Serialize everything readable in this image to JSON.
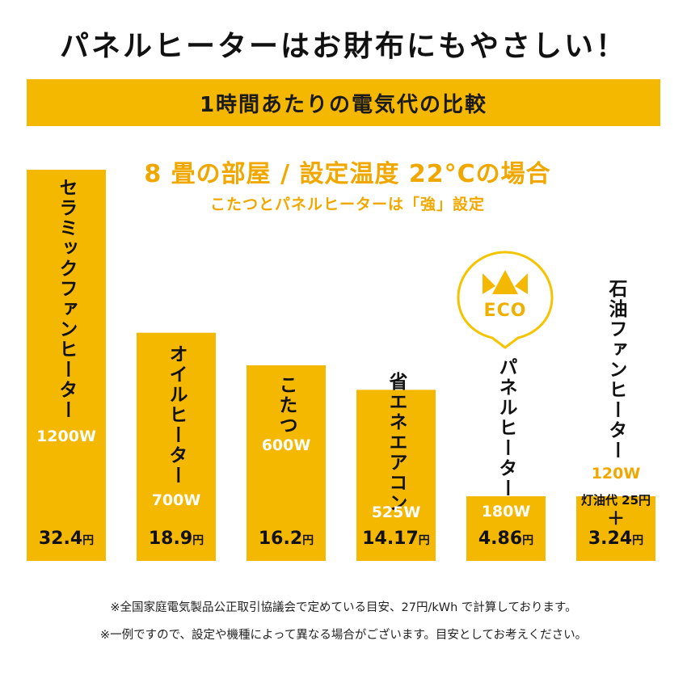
{
  "headline": "パネルヒーターはお財布にもやさしい！",
  "banner": "1時間あたりの電気代の比較",
  "condition": "8 畳の部屋 / 設定温度 22°Cの場合",
  "subcondition": "こたつとパネルヒーターは「強」設定",
  "eco_badge": "ECO",
  "colors": {
    "bar": "#f5b800",
    "accent_text": "#f0a800"
  },
  "chart_data": {
    "type": "bar",
    "title": "1時間あたりの電気代の比較",
    "unit": "円",
    "categories": [
      "セラミックファンヒーター",
      "オイルヒーター",
      "こたつ",
      "省エネエアコン",
      "パネルヒーター",
      "石油ファンヒーター"
    ],
    "wattage": [
      "1200W",
      "700W",
      "600W",
      "525W",
      "180W",
      "120W"
    ],
    "values": [
      32.4,
      18.9,
      16.2,
      14.17,
      4.86,
      3.24
    ],
    "value_labels": [
      "32.4",
      "18.9",
      "16.2",
      "14.17",
      "4.86",
      "3.24"
    ],
    "extra_note": "灯油代 25円",
    "extra_plus": "＋",
    "ylim": [
      0,
      32.4
    ]
  },
  "notes": [
    "※全国家庭電気製品公正取引協議会で定めている目安、27円/kWh で計算しております。",
    "※一例ですので、設定や機種によって異なる場合がございます。目安としてお考えください。"
  ]
}
